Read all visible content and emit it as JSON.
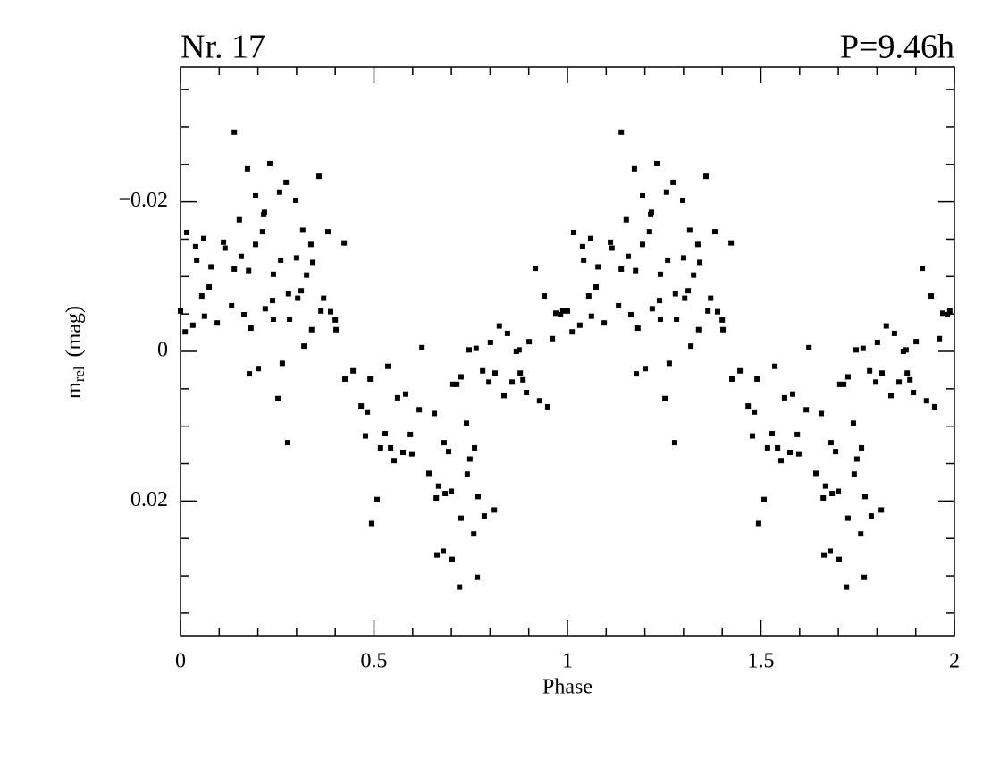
{
  "chart_data": {
    "type": "scatter",
    "title_left": "Nr. 17",
    "title_right": "P=9.46h",
    "xlabel": "Phase",
    "ylabel": "m",
    "ylabel_sub": "rel",
    "ylabel_unit": "(mag)",
    "color": "#000000",
    "yaxis_inverted": true,
    "xlim": [
      0,
      2
    ],
    "xticks": [
      0,
      0.5,
      1,
      1.5,
      2
    ],
    "xminorticks": [
      0.1,
      0.2,
      0.3,
      0.4,
      0.6,
      0.7,
      0.8,
      0.9,
      1.1,
      1.2,
      1.3,
      1.4,
      1.6,
      1.7,
      1.8,
      1.9
    ],
    "ylim": [
      -0.038,
      0.038
    ],
    "yticks": [
      {
        "value": -0.02,
        "label": "−0.02"
      },
      0,
      0.02
    ],
    "yminorticks": [
      -0.035,
      -0.03,
      -0.025,
      -0.015,
      -0.01,
      -0.005,
      0.005,
      0.01,
      0.015,
      0.025,
      0.03,
      0.035
    ],
    "x": [
      0.0,
      0.012,
      0.016,
      0.032,
      0.039,
      0.042,
      0.055,
      0.06,
      0.062,
      0.074,
      0.079,
      0.095,
      0.111,
      0.115,
      0.132,
      0.139,
      0.139,
      0.152,
      0.157,
      0.164,
      0.173,
      0.176,
      0.178,
      0.182,
      0.194,
      0.194,
      0.201,
      0.212,
      0.215,
      0.217,
      0.219,
      0.231,
      0.238,
      0.24,
      0.24,
      0.252,
      0.256,
      0.259,
      0.263,
      0.273,
      0.277,
      0.279,
      0.282,
      0.298,
      0.3,
      0.303,
      0.312,
      0.316,
      0.319,
      0.326,
      0.337,
      0.339,
      0.342,
      0.358,
      0.363,
      0.37,
      0.381,
      0.388,
      0.4,
      0.402,
      0.423,
      0.425,
      0.446,
      0.467,
      0.478,
      0.483,
      0.49,
      0.494,
      0.508,
      0.517,
      0.529,
      0.536,
      0.543,
      0.552,
      0.561,
      0.575,
      0.582,
      0.594,
      0.598,
      0.617,
      0.624,
      0.642,
      0.656,
      0.661,
      0.663,
      0.667,
      0.679,
      0.681,
      0.684,
      0.693,
      0.7,
      0.702,
      0.704,
      0.714,
      0.721,
      0.725,
      0.725,
      0.739,
      0.741,
      0.746,
      0.748,
      0.758,
      0.76,
      0.764,
      0.767,
      0.769,
      0.781,
      0.785,
      0.797,
      0.801,
      0.811,
      0.813,
      0.824,
      0.836,
      0.845,
      0.857,
      0.868,
      0.875,
      0.878,
      0.885,
      0.894,
      0.901,
      0.917,
      0.928,
      0.94,
      0.949,
      0.961,
      0.97,
      0.982,
      0.988,
      1.0,
      1.012,
      1.016,
      1.032,
      1.039,
      1.042,
      1.055,
      1.06,
      1.062,
      1.074,
      1.079,
      1.095,
      1.111,
      1.115,
      1.132,
      1.139,
      1.139,
      1.152,
      1.157,
      1.164,
      1.173,
      1.176,
      1.178,
      1.182,
      1.194,
      1.194,
      1.201,
      1.212,
      1.215,
      1.217,
      1.219,
      1.231,
      1.238,
      1.24,
      1.24,
      1.252,
      1.256,
      1.259,
      1.263,
      1.273,
      1.277,
      1.279,
      1.282,
      1.298,
      1.3,
      1.303,
      1.312,
      1.316,
      1.319,
      1.326,
      1.337,
      1.339,
      1.342,
      1.358,
      1.363,
      1.37,
      1.381,
      1.388,
      1.4,
      1.402,
      1.423,
      1.425,
      1.446,
      1.467,
      1.478,
      1.483,
      1.49,
      1.494,
      1.508,
      1.517,
      1.529,
      1.536,
      1.543,
      1.552,
      1.561,
      1.575,
      1.582,
      1.594,
      1.598,
      1.617,
      1.624,
      1.642,
      1.656,
      1.661,
      1.663,
      1.667,
      1.679,
      1.681,
      1.684,
      1.693,
      1.7,
      1.702,
      1.704,
      1.714,
      1.721,
      1.725,
      1.725,
      1.739,
      1.741,
      1.746,
      1.748,
      1.758,
      1.76,
      1.764,
      1.767,
      1.769,
      1.781,
      1.785,
      1.797,
      1.801,
      1.811,
      1.813,
      1.824,
      1.836,
      1.845,
      1.857,
      1.868,
      1.875,
      1.878,
      1.885,
      1.894,
      1.901,
      1.917,
      1.928,
      1.94,
      1.949,
      1.961,
      1.97,
      1.982,
      1.988
    ],
    "values": [
      -0.0054,
      -0.0026,
      -0.0159,
      -0.0035,
      -0.014,
      -0.0122,
      -0.0074,
      -0.0151,
      -0.0047,
      -0.0086,
      -0.0113,
      -0.0038,
      -0.0146,
      -0.0138,
      -0.0061,
      -0.0293,
      -0.011,
      -0.0176,
      -0.0127,
      -0.0049,
      -0.0244,
      -0.0108,
      0.003,
      -0.0031,
      -0.0208,
      -0.0143,
      0.0023,
      -0.016,
      -0.0183,
      -0.0186,
      -0.0057,
      -0.0251,
      -0.0068,
      -0.0103,
      -0.0043,
      0.0063,
      -0.0213,
      -0.0122,
      0.0016,
      -0.0226,
      0.0122,
      -0.0077,
      -0.0043,
      -0.0202,
      -0.0125,
      -0.0071,
      -0.0081,
      -0.0162,
      -0.0007,
      -0.0102,
      -0.0143,
      -0.0029,
      -0.0119,
      -0.0234,
      -0.0054,
      -0.0071,
      -0.016,
      -0.0053,
      -0.0042,
      -0.0029,
      -0.0145,
      0.0037,
      0.0026,
      0.0073,
      0.0113,
      0.0081,
      0.0037,
      0.023,
      0.0198,
      0.0129,
      0.011,
      0.002,
      0.0129,
      0.0146,
      0.0062,
      0.0135,
      0.0057,
      0.0111,
      0.0137,
      0.0078,
      -0.0005,
      0.0163,
      0.0083,
      0.0196,
      0.0272,
      0.018,
      0.0267,
      0.0122,
      0.019,
      0.0134,
      0.0187,
      0.0278,
      0.0044,
      0.0044,
      0.0315,
      0.0034,
      0.0223,
      0.0096,
      0.0164,
      -0.0002,
      0.0144,
      0.0244,
      0.0129,
      -0.0004,
      0.0302,
      0.0194,
      0.0026,
      0.022,
      0.0041,
      -0.0012,
      0.0212,
      0.0029,
      -0.0034,
      0.0059,
      -0.0024,
      0.0041,
      0.0,
      -0.0002,
      0.0029,
      0.0038,
      0.0055,
      -0.0013,
      -0.0111,
      0.0066,
      -0.0074,
      0.0074,
      -0.0017,
      -0.0051,
      -0.0049,
      -0.0054,
      -0.0054,
      -0.0026,
      -0.0159,
      -0.0035,
      -0.014,
      -0.0122,
      -0.0074,
      -0.0151,
      -0.0047,
      -0.0086,
      -0.0113,
      -0.0038,
      -0.0146,
      -0.0138,
      -0.0061,
      -0.0293,
      -0.011,
      -0.0176,
      -0.0127,
      -0.0049,
      -0.0244,
      -0.0108,
      0.003,
      -0.0031,
      -0.0208,
      -0.0143,
      0.0023,
      -0.016,
      -0.0183,
      -0.0186,
      -0.0057,
      -0.0251,
      -0.0068,
      -0.0103,
      -0.0043,
      0.0063,
      -0.0213,
      -0.0122,
      0.0016,
      -0.0226,
      0.0122,
      -0.0077,
      -0.0043,
      -0.0202,
      -0.0125,
      -0.0071,
      -0.0081,
      -0.0162,
      -0.0007,
      -0.0102,
      -0.0143,
      -0.0029,
      -0.0119,
      -0.0234,
      -0.0054,
      -0.0071,
      -0.016,
      -0.0053,
      -0.0042,
      -0.0029,
      -0.0145,
      0.0037,
      0.0026,
      0.0073,
      0.0113,
      0.0081,
      0.0037,
      0.023,
      0.0198,
      0.0129,
      0.011,
      0.002,
      0.0129,
      0.0146,
      0.0062,
      0.0135,
      0.0057,
      0.0111,
      0.0137,
      0.0078,
      -0.0005,
      0.0163,
      0.0083,
      0.0196,
      0.0272,
      0.018,
      0.0267,
      0.0122,
      0.019,
      0.0134,
      0.0187,
      0.0278,
      0.0044,
      0.0044,
      0.0315,
      0.0034,
      0.0223,
      0.0096,
      0.0164,
      -0.0002,
      0.0144,
      0.0244,
      0.0129,
      -0.0004,
      0.0302,
      0.0194,
      0.0026,
      0.022,
      0.0041,
      -0.0012,
      0.0212,
      0.0029,
      -0.0034,
      0.0059,
      -0.0024,
      0.0041,
      0.0,
      -0.0002,
      0.0029,
      0.0038,
      0.0055,
      -0.0013,
      -0.0111,
      0.0066,
      -0.0074,
      0.0074,
      -0.0017,
      -0.0051,
      -0.0049,
      -0.0054
    ]
  }
}
